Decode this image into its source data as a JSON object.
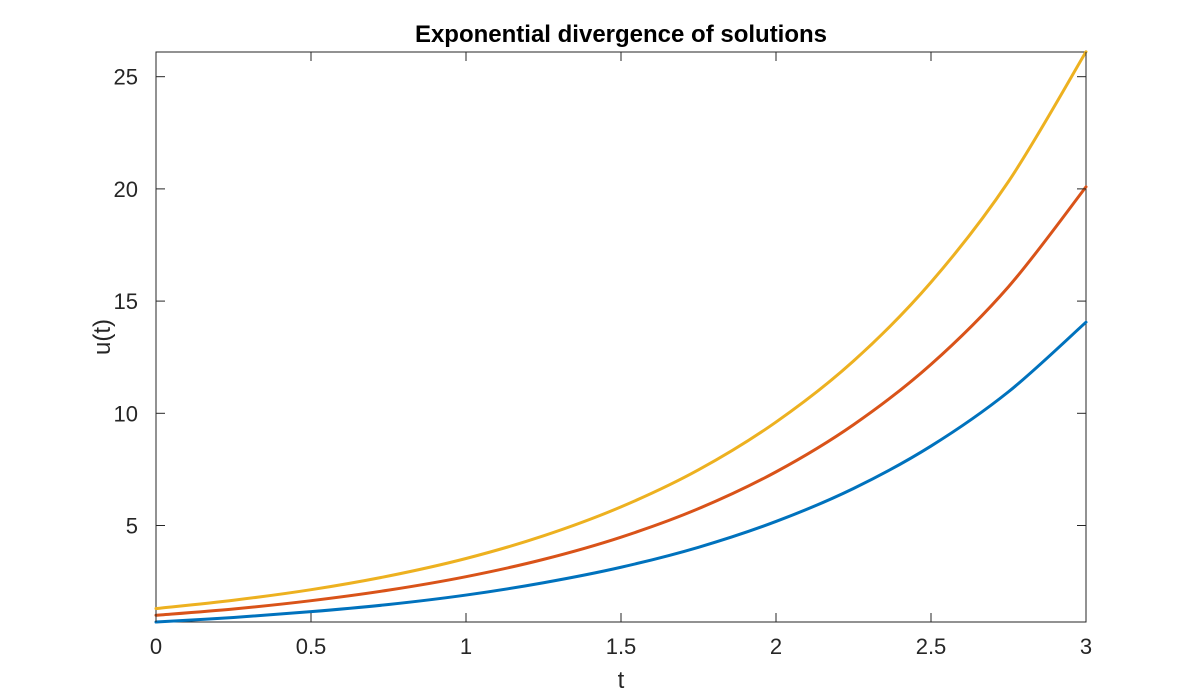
{
  "chart_data": {
    "type": "line",
    "title": "Exponential divergence of solutions",
    "xlabel": "t",
    "ylabel": "u(t)",
    "xlim": [
      0,
      3
    ],
    "ylim": [
      0.7,
      26.1
    ],
    "grid": false,
    "legend": null,
    "xticks": [
      0,
      0.5,
      1,
      1.5,
      2,
      2.5,
      3
    ],
    "xtick_labels": [
      "0",
      "0.5",
      "1",
      "1.5",
      "2",
      "2.5",
      "3"
    ],
    "yticks": [
      5,
      10,
      15,
      20,
      25
    ],
    "ytick_labels": [
      "5",
      "10",
      "15",
      "20",
      "25"
    ],
    "x": [
      0,
      0.25,
      0.5,
      0.75,
      1,
      1.25,
      1.5,
      1.75,
      2,
      2.25,
      2.5,
      2.75,
      3
    ],
    "series": [
      {
        "color": "#0072BD",
        "values": [
          0.7,
          0.9,
          1.16,
          1.48,
          1.9,
          2.45,
          3.14,
          4.03,
          5.18,
          6.65,
          8.54,
          10.96,
          14.06
        ]
      },
      {
        "color": "#D95319",
        "values": [
          1.0,
          1.28,
          1.65,
          2.12,
          2.72,
          3.49,
          4.48,
          5.75,
          7.39,
          9.49,
          12.18,
          15.64,
          20.09
        ]
      },
      {
        "color": "#EDB120",
        "values": [
          1.3,
          1.67,
          2.14,
          2.75,
          3.53,
          4.54,
          5.83,
          7.48,
          9.61,
          12.33,
          15.84,
          20.33,
          26.11
        ]
      }
    ]
  }
}
